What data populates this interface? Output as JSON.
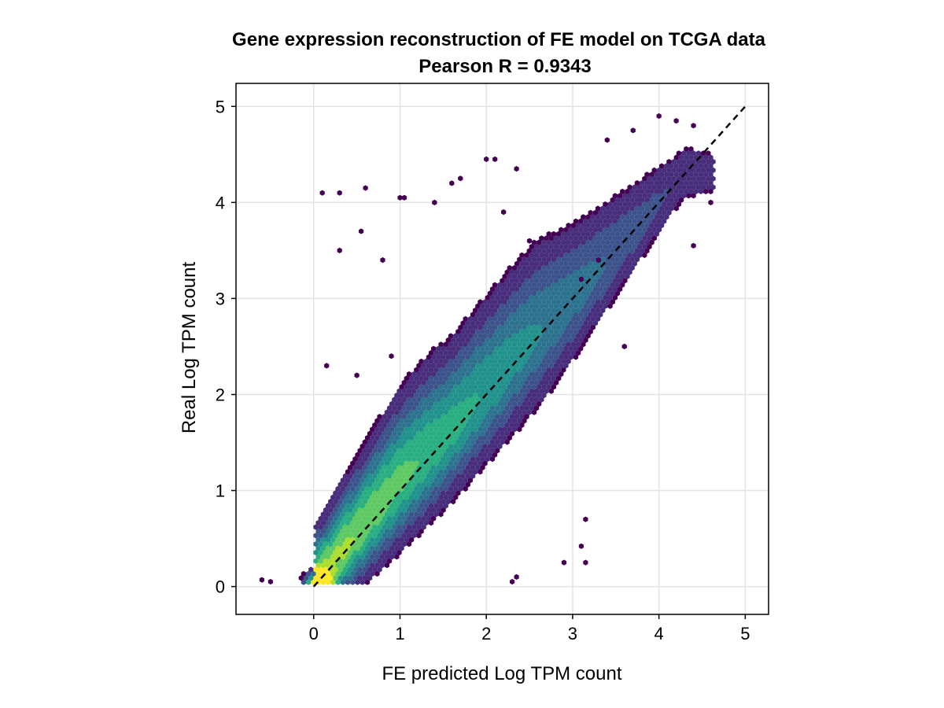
{
  "chart_data": {
    "type": "scatter",
    "subtype": "hexbin",
    "title": "Gene expression reconstruction of FE model on TCGA data",
    "subtitle": "Pearson R = 0.9343",
    "xlabel": "FE predicted Log TPM count",
    "ylabel": "Real Log TPM count",
    "xlim": [
      -0.9,
      5.27
    ],
    "ylim": [
      -0.29,
      5.24
    ],
    "xticks": [
      "0",
      "1",
      "2",
      "3",
      "4",
      "5"
    ],
    "yticks": [
      "0",
      "1",
      "2",
      "3",
      "4",
      "5"
    ],
    "grid": true,
    "colormap": "viridis",
    "density_colors": [
      "#440154",
      "#472d7b",
      "#3b528b",
      "#2c728e",
      "#21918c",
      "#28ae80",
      "#5ec962",
      "#addc30",
      "#fde725"
    ],
    "reference_line": {
      "style": "dashed",
      "color": "#000000",
      "from": [
        0,
        0
      ],
      "to": [
        5,
        5
      ]
    },
    "density_trend": {
      "x": [
        0,
        0.5,
        1,
        1.5,
        2,
        2.5,
        3,
        3.5,
        4,
        4.3
      ],
      "y": [
        0,
        0.55,
        1.1,
        1.55,
        2.05,
        2.55,
        3.0,
        3.5,
        4.0,
        4.3
      ]
    },
    "outliers": [
      [
        0.1,
        4.1
      ],
      [
        0.3,
        4.1
      ],
      [
        0.6,
        4.15
      ],
      [
        1.0,
        4.05
      ],
      [
        1.05,
        4.05
      ],
      [
        1.4,
        4.0
      ],
      [
        1.6,
        4.2
      ],
      [
        1.7,
        4.25
      ],
      [
        2.0,
        4.45
      ],
      [
        2.1,
        4.45
      ],
      [
        2.35,
        4.35
      ],
      [
        3.4,
        4.65
      ],
      [
        3.7,
        4.75
      ],
      [
        4.0,
        4.9
      ],
      [
        4.2,
        4.85
      ],
      [
        4.4,
        4.8
      ],
      [
        0.3,
        3.5
      ],
      [
        0.55,
        3.7
      ],
      [
        0.8,
        3.4
      ],
      [
        2.2,
        3.9
      ],
      [
        2.5,
        3.6
      ],
      [
        3.1,
        3.2
      ],
      [
        3.15,
        0.7
      ],
      [
        3.1,
        0.42
      ],
      [
        3.15,
        0.25
      ],
      [
        2.9,
        0.25
      ],
      [
        2.3,
        0.05
      ],
      [
        2.35,
        0.1
      ],
      [
        -0.5,
        0.05
      ],
      [
        -0.6,
        0.07
      ],
      [
        0.9,
        2.4
      ],
      [
        3.6,
        2.5
      ],
      [
        3.3,
        3.4
      ],
      [
        4.4,
        3.55
      ],
      [
        4.6,
        4.0
      ],
      [
        0.15,
        2.3
      ],
      [
        0.5,
        2.2
      ]
    ]
  }
}
